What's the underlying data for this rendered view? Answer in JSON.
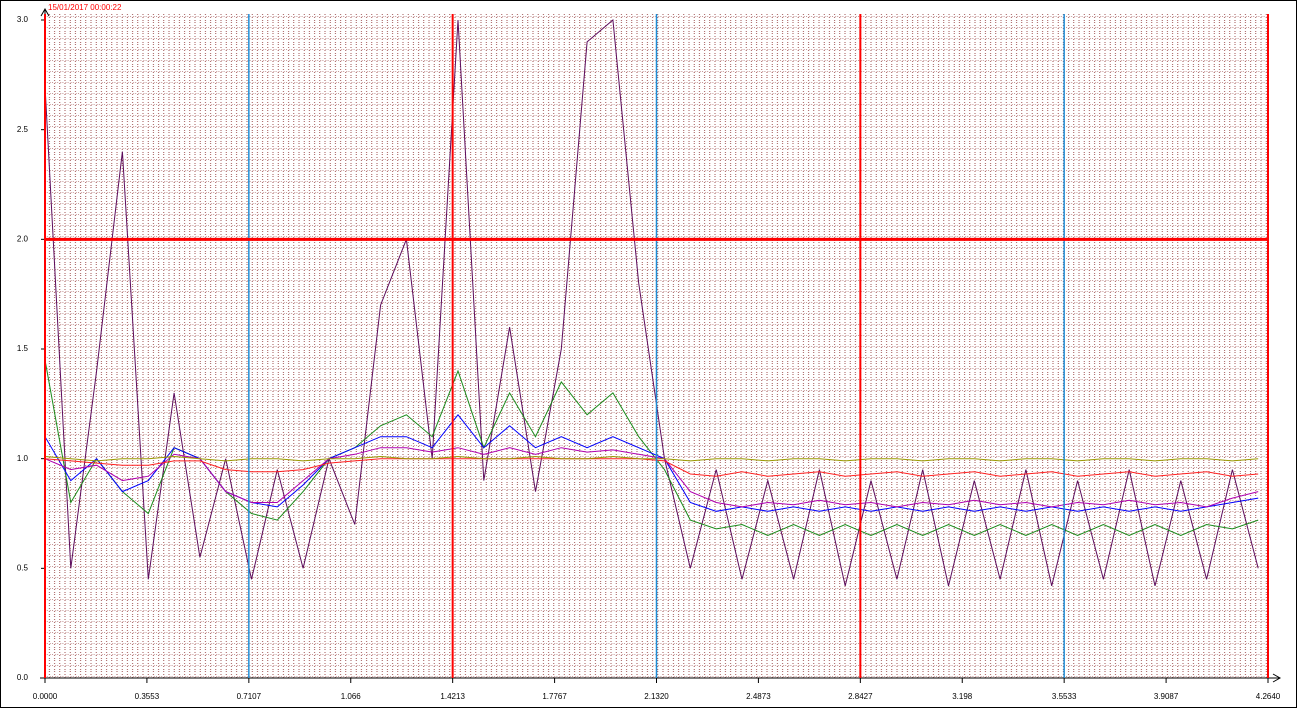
{
  "chart_data": {
    "type": "line",
    "timestamp": "15/01/2017 00:00:22",
    "x": [
      0,
      0.09,
      0.18,
      0.27,
      0.36,
      0.45,
      0.54,
      0.63,
      0.72,
      0.81,
      0.9,
      0.99,
      1.08,
      1.17,
      1.26,
      1.35,
      1.44,
      1.53,
      1.62,
      1.71,
      1.8,
      1.89,
      1.98,
      2.07,
      2.16,
      2.25,
      2.34,
      2.43,
      2.52,
      2.61,
      2.7,
      2.79,
      2.88,
      2.97,
      3.06,
      3.15,
      3.24,
      3.33,
      3.42,
      3.51,
      3.6,
      3.69,
      3.78,
      3.87,
      3.96,
      4.05,
      4.14,
      4.23
    ],
    "series": [
      {
        "color": "#5c0c5c",
        "values": [
          2.7,
          0.5,
          1.4,
          2.4,
          0.45,
          1.3,
          0.55,
          1.0,
          0.45,
          0.95,
          0.5,
          1.0,
          0.7,
          1.7,
          2.0,
          1.0,
          3.0,
          0.9,
          1.6,
          0.85,
          1.5,
          2.9,
          3.0,
          1.8,
          1.0,
          0.5,
          0.95,
          0.45,
          0.9,
          0.45,
          0.95,
          0.42,
          0.9,
          0.45,
          0.95,
          0.42,
          0.9,
          0.45,
          0.95,
          0.42,
          0.9,
          0.45,
          0.95,
          0.42,
          0.9,
          0.45,
          0.95,
          0.5
        ]
      },
      {
        "color": "#1a8a1a",
        "values": [
          1.45,
          0.8,
          1.0,
          0.85,
          0.75,
          1.05,
          1.0,
          0.85,
          0.75,
          0.72,
          0.85,
          1.0,
          1.05,
          1.15,
          1.2,
          1.1,
          1.4,
          1.05,
          1.3,
          1.1,
          1.35,
          1.2,
          1.3,
          1.1,
          0.95,
          0.72,
          0.68,
          0.7,
          0.65,
          0.7,
          0.65,
          0.7,
          0.65,
          0.7,
          0.65,
          0.7,
          0.65,
          0.7,
          0.65,
          0.7,
          0.65,
          0.7,
          0.65,
          0.7,
          0.65,
          0.7,
          0.68,
          0.72
        ]
      },
      {
        "color": "#0000ff",
        "values": [
          1.1,
          0.9,
          1.0,
          0.85,
          0.9,
          1.05,
          1.0,
          0.85,
          0.8,
          0.78,
          0.88,
          1.0,
          1.05,
          1.1,
          1.1,
          1.05,
          1.2,
          1.05,
          1.15,
          1.05,
          1.1,
          1.05,
          1.1,
          1.05,
          1.0,
          0.8,
          0.76,
          0.78,
          0.76,
          0.78,
          0.76,
          0.78,
          0.76,
          0.78,
          0.76,
          0.78,
          0.76,
          0.78,
          0.76,
          0.78,
          0.76,
          0.78,
          0.76,
          0.78,
          0.76,
          0.78,
          0.8,
          0.82
        ]
      },
      {
        "color": "#b000b0",
        "values": [
          1.0,
          0.95,
          0.97,
          0.9,
          0.92,
          1.02,
          1.0,
          0.85,
          0.8,
          0.8,
          0.9,
          1.0,
          1.02,
          1.05,
          1.05,
          1.03,
          1.05,
          1.02,
          1.05,
          1.02,
          1.05,
          1.03,
          1.04,
          1.02,
          1.0,
          0.85,
          0.8,
          0.78,
          0.8,
          0.79,
          0.81,
          0.79,
          0.8,
          0.78,
          0.8,
          0.79,
          0.81,
          0.79,
          0.8,
          0.78,
          0.8,
          0.79,
          0.81,
          0.79,
          0.8,
          0.78,
          0.82,
          0.85
        ]
      },
      {
        "color": "#ff2020",
        "values": [
          1.0,
          0.99,
          0.98,
          0.97,
          0.97,
          0.99,
          0.99,
          0.95,
          0.94,
          0.94,
          0.95,
          0.98,
          0.99,
          1.0,
          1.0,
          1.0,
          1.0,
          1.0,
          1.0,
          1.0,
          1.0,
          1.0,
          1.0,
          1.0,
          0.99,
          0.93,
          0.92,
          0.94,
          0.92,
          0.93,
          0.94,
          0.92,
          0.93,
          0.94,
          0.92,
          0.93,
          0.94,
          0.92,
          0.93,
          0.94,
          0.92,
          0.93,
          0.94,
          0.92,
          0.93,
          0.94,
          0.92,
          0.93
        ]
      },
      {
        "color": "#9a9a00",
        "values": [
          1.01,
          1.0,
          0.99,
          1.0,
          1.0,
          1.01,
          1.0,
          0.99,
          1.0,
          1.0,
          0.99,
          1.0,
          1.0,
          1.01,
          1.0,
          1.0,
          1.01,
          1.0,
          1.0,
          1.01,
          1.0,
          1.0,
          1.01,
          1.0,
          1.0,
          0.99,
          1.0,
          1.0,
          0.99,
          1.0,
          1.0,
          0.99,
          1.0,
          1.0,
          0.99,
          1.0,
          1.0,
          0.99,
          1.0,
          1.0,
          0.99,
          1.0,
          1.0,
          0.99,
          1.0,
          1.0,
          0.99,
          1.0
        ]
      }
    ],
    "xlim": [
      0,
      4.264
    ],
    "ylim": [
      0,
      3
    ],
    "xticks": [
      {
        "value": 0,
        "label": "0.0000"
      },
      0.3553,
      0.7107,
      1.066,
      1.4213,
      1.7767,
      {
        "value": 2.132,
        "label": "2.1320"
      },
      2.4873,
      2.8427,
      3.198,
      3.5533,
      3.9087,
      {
        "value": 4.264,
        "label": "4.2640"
      }
    ],
    "yticks": [
      {
        "value": 0,
        "label": "0.0"
      },
      0.5,
      {
        "value": 1,
        "label": "1.0"
      },
      1.5,
      {
        "value": 2,
        "label": "2.0"
      },
      2.5,
      {
        "value": 3,
        "label": "3.0"
      }
    ],
    "grid": true,
    "x_markers": [
      {
        "x": 0,
        "color": "#ff0000"
      },
      {
        "x": 1.4213,
        "color": "#ff0000"
      },
      {
        "x": 2.8427,
        "color": "#ff0000"
      },
      {
        "x": 4.264,
        "color": "#ff0000"
      },
      {
        "x": 0.7107,
        "color": "#1f8dd6"
      },
      {
        "x": 2.132,
        "color": "#1f8dd6"
      },
      {
        "x": 3.5533,
        "color": "#1f8dd6"
      }
    ],
    "y_markers": [
      {
        "y": 2,
        "color": "#ff0000"
      }
    ]
  }
}
